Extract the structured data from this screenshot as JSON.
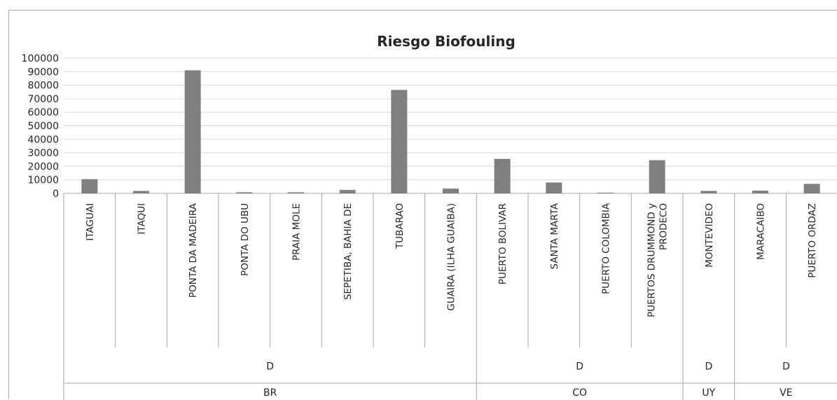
{
  "chart_data": {
    "type": "bar",
    "title": "Riesgo Biofouling",
    "xlabel": "",
    "ylabel": "",
    "ylim": [
      0,
      100000
    ],
    "yticks": [
      0,
      10000,
      20000,
      30000,
      40000,
      50000,
      60000,
      70000,
      80000,
      90000,
      100000
    ],
    "ytick_labels": [
      "0",
      "10000",
      "20000",
      "30000",
      "40000",
      "50000",
      "60000",
      "70000",
      "80000",
      "90000",
      "100000"
    ],
    "grid": true,
    "legend": "none",
    "bar_color": "#7f7f7f",
    "categories": [
      "ITAGUAI",
      "ITAQUI",
      "PONTA DA MADEIRA",
      "PONTA DO UBU",
      "PRAIA MOLE",
      "SEPETIBA, BAHIA DE",
      "TUBARAO",
      "GUAIRA (ILHA GUAIBA)",
      "PUERTO BOLIVAR",
      "SANTA MARTA",
      "PUERTO COLOMBIA",
      "PUERTOS DRUMMOND y PRODECO",
      "MONTEVIDEO",
      "MARACAIBO",
      "PUERTO ORDAZ"
    ],
    "category_label_lines": [
      [
        "ITAGUAI"
      ],
      [
        "ITAQUI"
      ],
      [
        "PONTA DA MADEIRA"
      ],
      [
        "PONTA DO UBU"
      ],
      [
        "PRAIA MOLE"
      ],
      [
        "SEPETIBA, BAHIA DE"
      ],
      [
        "TUBARAO"
      ],
      [
        "GUAIRA (ILHA GUAIBA)"
      ],
      [
        "PUERTO BOLIVAR"
      ],
      [
        "SANTA MARTA"
      ],
      [
        "PUERTO COLOMBIA"
      ],
      [
        "PUERTOS DRUMMOND y",
        "PRODECO"
      ],
      [
        "MONTEVIDEO"
      ],
      [
        "MARACAIBO"
      ],
      [
        "PUERTO ORDAZ"
      ]
    ],
    "values": [
      10500,
      1800,
      91000,
      800,
      800,
      2500,
      76500,
      3500,
      25500,
      8000,
      500,
      24500,
      1800,
      2000,
      7000
    ],
    "group_levels": [
      [
        {
          "label": "D",
          "span": 8
        },
        {
          "label": "D",
          "span": 4
        },
        {
          "label": "D",
          "span": 1
        },
        {
          "label": "D",
          "span": 2
        }
      ],
      [
        {
          "label": "BR",
          "span": 8
        },
        {
          "label": "CO",
          "span": 4
        },
        {
          "label": "UY",
          "span": 1
        },
        {
          "label": "VE",
          "span": 2
        }
      ]
    ]
  }
}
